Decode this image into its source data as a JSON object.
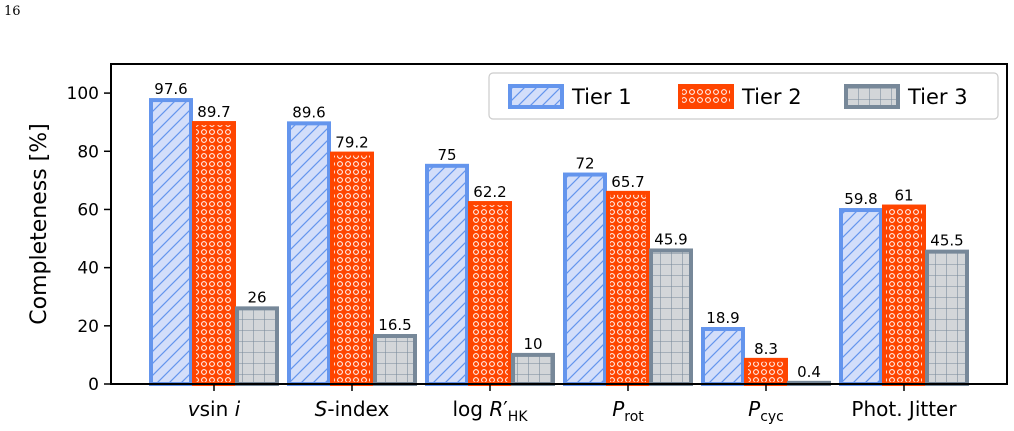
{
  "page": {
    "number": "16"
  },
  "chart_data": {
    "type": "bar",
    "title": "",
    "xlabel": "",
    "ylabel": "Completeness [%]",
    "ylim": [
      0,
      110
    ],
    "yticks": [
      0,
      20,
      40,
      60,
      80,
      100
    ],
    "grid": false,
    "legend_position": "top-right",
    "categories": [
      {
        "main": "v",
        "rest": "sin ",
        "italic2": "i"
      },
      {
        "main": "S",
        "rest": "-index"
      },
      {
        "main": "log ",
        "italic": "R",
        "prime": "′",
        "sub": "HK"
      },
      {
        "main": "P",
        "sub": "rot"
      },
      {
        "main": "P",
        "sub": "cyc"
      },
      {
        "main": "Phot. Jitter"
      }
    ],
    "series": [
      {
        "name": "Tier 1",
        "values": [
          97.6,
          89.6,
          75,
          72,
          18.9,
          59.8
        ],
        "labels": [
          "97.6",
          "89.6",
          "75",
          "72",
          "18.9",
          "59.8"
        ],
        "edge_color": "#6495ed",
        "fill_color": "#d3defa",
        "hatch": "diagonal"
      },
      {
        "name": "Tier 2",
        "values": [
          89.7,
          79.2,
          62.2,
          65.7,
          8.3,
          61
        ],
        "labels": [
          "89.7",
          "79.2",
          "62.2",
          "65.7",
          "8.3",
          "61"
        ],
        "edge_color": "#ff4500",
        "fill_color": "#ff4500",
        "hatch": "circles"
      },
      {
        "name": "Tier 3",
        "values": [
          26,
          16.5,
          10,
          45.9,
          0.4,
          45.5
        ],
        "labels": [
          "26",
          "16.5",
          "10",
          "45.9",
          "0.4",
          "45.5"
        ],
        "edge_color": "#778899",
        "fill_color": "#d3d6d9",
        "hatch": "grid"
      }
    ]
  }
}
